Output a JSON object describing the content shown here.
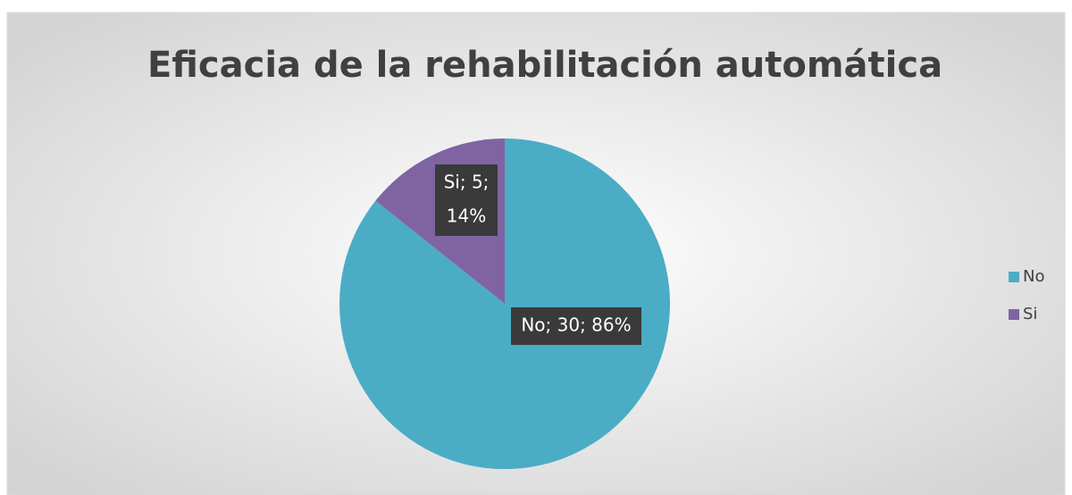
{
  "chart_data": {
    "type": "pie",
    "title": "Eficacia de la rehabilitación automática",
    "categories": [
      "No",
      "Si"
    ],
    "values": [
      30,
      5
    ],
    "value_labels": [
      [
        "No; 30; 86%"
      ],
      [
        "Si; 5;",
        "14%"
      ]
    ],
    "colors": [
      "#4bacc6",
      "#8064a2"
    ],
    "legend": "right"
  }
}
